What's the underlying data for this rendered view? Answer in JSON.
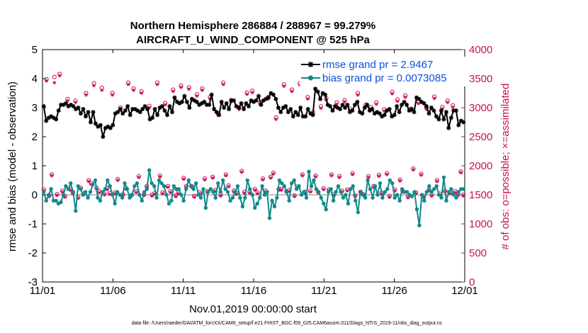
{
  "chart_data": {
    "type": "line",
    "title": "Northern Hemisphere 286884 / 288967 = 99.279%",
    "subtitle": "AIRCRAFT_U_WIND_COMPONENT @ 525 hPa",
    "xlabel": "Nov.01,2019 00:00:00 start",
    "ylabel": "rmse and bias (model - observation)",
    "ylabel_right": "# of obs: o=possible; ×=assimilated",
    "xlim": [
      0,
      30
    ],
    "ylim": [
      -3,
      5
    ],
    "ylim_right": [
      0,
      4000
    ],
    "x_tick_labels": [
      "11/01",
      "11/06",
      "11/11",
      "11/16",
      "11/21",
      "11/26",
      "12/01"
    ],
    "y_tick_labels": [
      "-3",
      "-2",
      "-1",
      "0",
      "1",
      "2",
      "3",
      "4",
      "5"
    ],
    "y_right_tick_labels": [
      "0",
      "500",
      "1000",
      "1500",
      "2000",
      "2500",
      "3000",
      "3500",
      "4000"
    ],
    "legend": {
      "position": "top-right",
      "entries": [
        "rmse grand pr = 2.9467",
        "bias grand pr = 0.0073085"
      ]
    },
    "colors": {
      "rmse": "#000000",
      "bias": "#118a8a",
      "obs": "#c8105a",
      "legend_text": "#0b4fe0",
      "zero_line": "#aaaaaa"
    },
    "series": [
      {
        "name": "rmse",
        "values": [
          3.05,
          2.55,
          2.65,
          2.7,
          2.65,
          2.6,
          2.9,
          3.1,
          3.1,
          3.15,
          3.05,
          3.1,
          3.05,
          2.95,
          3.0,
          2.8,
          2.95,
          2.7,
          2.85,
          2.5,
          2.85,
          2.45,
          2.35,
          2.4,
          2.0,
          2.3,
          2.35,
          2.3,
          2.4,
          2.8,
          2.85,
          2.95,
          2.8,
          2.9,
          3.05,
          2.75,
          2.95,
          2.95,
          2.9,
          2.85,
          2.95,
          3.05,
          2.95,
          2.6,
          2.65,
          2.95,
          2.75,
          3.0,
          3.05,
          2.9,
          2.75,
          3.05,
          2.85,
          3.35,
          3.2,
          3.15,
          3.2,
          3.4,
          3.2,
          3.0,
          3.3,
          3.25,
          3.2,
          3.1,
          3.15,
          3.2,
          3.1,
          3.1,
          3.45,
          2.95,
          2.85,
          2.75,
          3.2,
          3.0,
          3.15,
          2.95,
          3.25,
          3.25,
          3.05,
          3.0,
          3.15,
          2.95,
          3.15,
          3.05,
          3.25,
          3.2,
          3.25,
          3.4,
          3.1,
          3.25,
          3.3,
          3.35,
          3.5,
          3.45,
          3.3,
          3.0,
          2.85,
          3.0,
          3.05,
          2.85,
          2.95,
          2.7,
          2.85,
          2.75,
          3.0,
          2.7,
          2.7,
          2.95,
          2.8,
          2.75,
          3.65,
          3.55,
          3.3,
          3.5,
          3.45,
          3.1,
          3.05,
          2.9,
          3.05,
          3.0,
          2.95,
          3.1,
          3.0,
          3.1,
          2.85,
          2.9,
          3.1,
          3.2,
          2.85,
          2.8,
          3.0,
          3.1,
          2.9,
          2.95,
          2.8,
          2.85,
          2.8,
          2.7,
          2.75,
          2.9,
          2.95,
          2.7,
          2.75,
          3.05,
          2.85,
          3.1,
          3.2,
          3.1,
          2.9,
          2.95,
          2.85,
          3.35,
          3.3,
          3.2,
          3.15,
          3.05,
          2.8,
          3.0,
          2.9,
          2.7,
          2.6,
          2.9,
          2.6,
          2.85,
          2.3,
          2.65,
          2.9,
          2.9,
          2.4,
          2.55,
          2.5
        ]
      },
      {
        "name": "bias",
        "values": [
          0.1,
          -0.2,
          0.0,
          0.2,
          -0.2,
          -0.2,
          -0.3,
          -0.25,
          0.0,
          0.3,
          0.2,
          0.4,
          0.1,
          -0.55,
          0.3,
          0.2,
          0.0,
          0.1,
          -0.1,
          0.1,
          0.35,
          0.5,
          -0.1,
          -0.2,
          0.1,
          0.2,
          0.5,
          0.3,
          0.0,
          -0.3,
          0.1,
          0.0,
          -0.1,
          0.4,
          0.2,
          -0.1,
          0.0,
          0.3,
          0.4,
          0.0,
          -0.2,
          0.1,
          0.2,
          0.85,
          0.4,
          0.3,
          -0.1,
          0.5,
          0.4,
          0.3,
          0.0,
          -0.3,
          -0.2,
          0.3,
          0.2,
          0.2,
          0.0,
          -0.2,
          0.2,
          0.5,
          0.3,
          0.2,
          0.4,
          0.0,
          -0.1,
          0.2,
          -0.45,
          0.1,
          0.2,
          0.1,
          -0.1,
          0.4,
          0.1,
          0.5,
          0.2,
          0.1,
          -0.2,
          -0.1,
          0.1,
          0.3,
          -0.1,
          -0.4,
          -0.1,
          0.5,
          0.2,
          0.0,
          -0.45,
          -0.3,
          -0.1,
          0.3,
          0.0,
          0.1,
          -0.8,
          -0.2,
          -0.4,
          -0.1,
          0.5,
          0.4,
          0.3,
          0.1,
          -0.2,
          0.4,
          0.5,
          0.2,
          0.3,
          0.0,
          0.1,
          -0.1,
          0.8,
          0.3,
          0.5,
          0.2,
          0.1,
          -0.1,
          -0.3,
          -0.5,
          0.1,
          0.2,
          -0.2,
          0.1,
          0.3,
          0.1,
          -0.1,
          0.0,
          -0.3,
          0.2,
          0.3,
          -0.2,
          -0.6,
          0.1,
          0.0,
          -0.1,
          0.5,
          0.2,
          -0.1,
          0.3,
          0.0,
          0.4,
          -0.1,
          0.1,
          0.2,
          0.5,
          0.4,
          -0.1,
          0.0,
          -0.2,
          0.2,
          0.1,
          0.1,
          0.0,
          -0.05,
          0.1,
          -0.5,
          -1.05,
          0.0,
          -0.2,
          0.1,
          0.3,
          0.1,
          0.2,
          0.3,
          0.0,
          -0.1,
          0.6,
          -0.2,
          0.1,
          0.2,
          0.0,
          -0.1,
          0.1,
          0.2,
          0.2
        ]
      },
      {
        "name": "obs possible",
        "axis": "right",
        "values": [
          1590,
          3490,
          1490,
          1850,
          3530,
          1510,
          3580,
          1570,
          1480,
          3150,
          1600,
          1540,
          3120,
          1460,
          1620,
          1520,
          3250,
          1750,
          1700,
          3420,
          1620,
          1560,
          3340,
          1520,
          1610,
          1530,
          3250,
          1540,
          1770,
          3000,
          1510,
          1620,
          3430,
          1490,
          3330,
          1560,
          1820,
          3280,
          1510,
          1650,
          3030,
          1500,
          1530,
          3430,
          1830,
          1540,
          3080,
          1650,
          1560,
          3310,
          1490,
          1540,
          3380,
          1790,
          1650,
          3350,
          1650,
          1480,
          3230,
          1540,
          3330,
          1780,
          1560,
          3180,
          1810,
          1580,
          2900,
          1500,
          3430,
          1850,
          1660,
          3130,
          1570,
          1530,
          3000,
          1910,
          1550,
          3260,
          1550,
          3290,
          1600,
          1540,
          3090,
          1780,
          1570,
          3180,
          1810,
          1880,
          2830,
          1600,
          1600,
          3400,
          1560,
          1580,
          3310,
          1490,
          1640,
          3420,
          1850,
          1550,
          3180,
          1570,
          2920,
          1830,
          1550,
          3020,
          1610,
          3160,
          1590,
          1850,
          1510,
          3090,
          1820,
          1570,
          3130,
          1590,
          2980,
          1870,
          1490,
          3250,
          1550,
          1510,
          3050,
          1820,
          3010,
          1650,
          3090,
          1840,
          1530,
          2970,
          1870,
          1480,
          3270,
          1590,
          3140,
          1760,
          1570,
          3210,
          1470,
          2980,
          1950,
          1540,
          3100,
          1860,
          1480,
          3000,
          1590,
          1500,
          3190,
          1750,
          1520,
          3010,
          1570,
          3120,
          1540,
          3040,
          1560,
          1510,
          1900,
          1500
        ]
      },
      {
        "name": "obs assimilated",
        "axis": "right",
        "values": [
          1570,
          3460,
          1470,
          1830,
          3430,
          1490,
          3550,
          1550,
          1460,
          3120,
          1580,
          1520,
          3090,
          1440,
          1600,
          1500,
          3220,
          1730,
          1680,
          3380,
          1600,
          1540,
          3300,
          1500,
          1590,
          1510,
          3220,
          1520,
          1750,
          2960,
          1490,
          1600,
          3400,
          1470,
          3300,
          1540,
          1800,
          3250,
          1490,
          1630,
          3000,
          1480,
          1510,
          3400,
          1810,
          1520,
          3050,
          1630,
          1540,
          3280,
          1470,
          1520,
          3350,
          1770,
          1630,
          3320,
          1630,
          1460,
          3200,
          1520,
          3300,
          1760,
          1540,
          3150,
          1790,
          1560,
          2870,
          1480,
          3400,
          1830,
          1640,
          3100,
          1550,
          1510,
          2970,
          1890,
          1530,
          3230,
          1530,
          3260,
          1580,
          1520,
          3060,
          1760,
          1550,
          3150,
          1790,
          1860,
          2800,
          1580,
          1580,
          3370,
          1540,
          1560,
          3280,
          1470,
          1620,
          3390,
          1830,
          1530,
          3150,
          1550,
          2890,
          1810,
          1530,
          2990,
          1590,
          3130,
          1570,
          1830,
          1490,
          3060,
          1800,
          1550,
          3100,
          1570,
          2950,
          1850,
          1470,
          3220,
          1530,
          1490,
          3020,
          1800,
          2980,
          1630,
          3060,
          1820,
          1510,
          2940,
          1850,
          1460,
          3240,
          1570,
          3110,
          1740,
          1550,
          3180,
          1450,
          2950,
          1930,
          1520,
          3070,
          1840,
          1460,
          2970,
          1570,
          1480,
          3160,
          1730,
          1500,
          2980,
          1550,
          3090,
          1520,
          3010,
          1540,
          1490,
          1880,
          1480
        ]
      }
    ]
  },
  "footer": "data file: /Users/raeder/DAI/ATM_forcXX/CAM6_setup/f.e21.FHIST_BGC.f09_025.CAM6assim.011/Diags_NTrS_2019-11/obs_diag_output.nc"
}
